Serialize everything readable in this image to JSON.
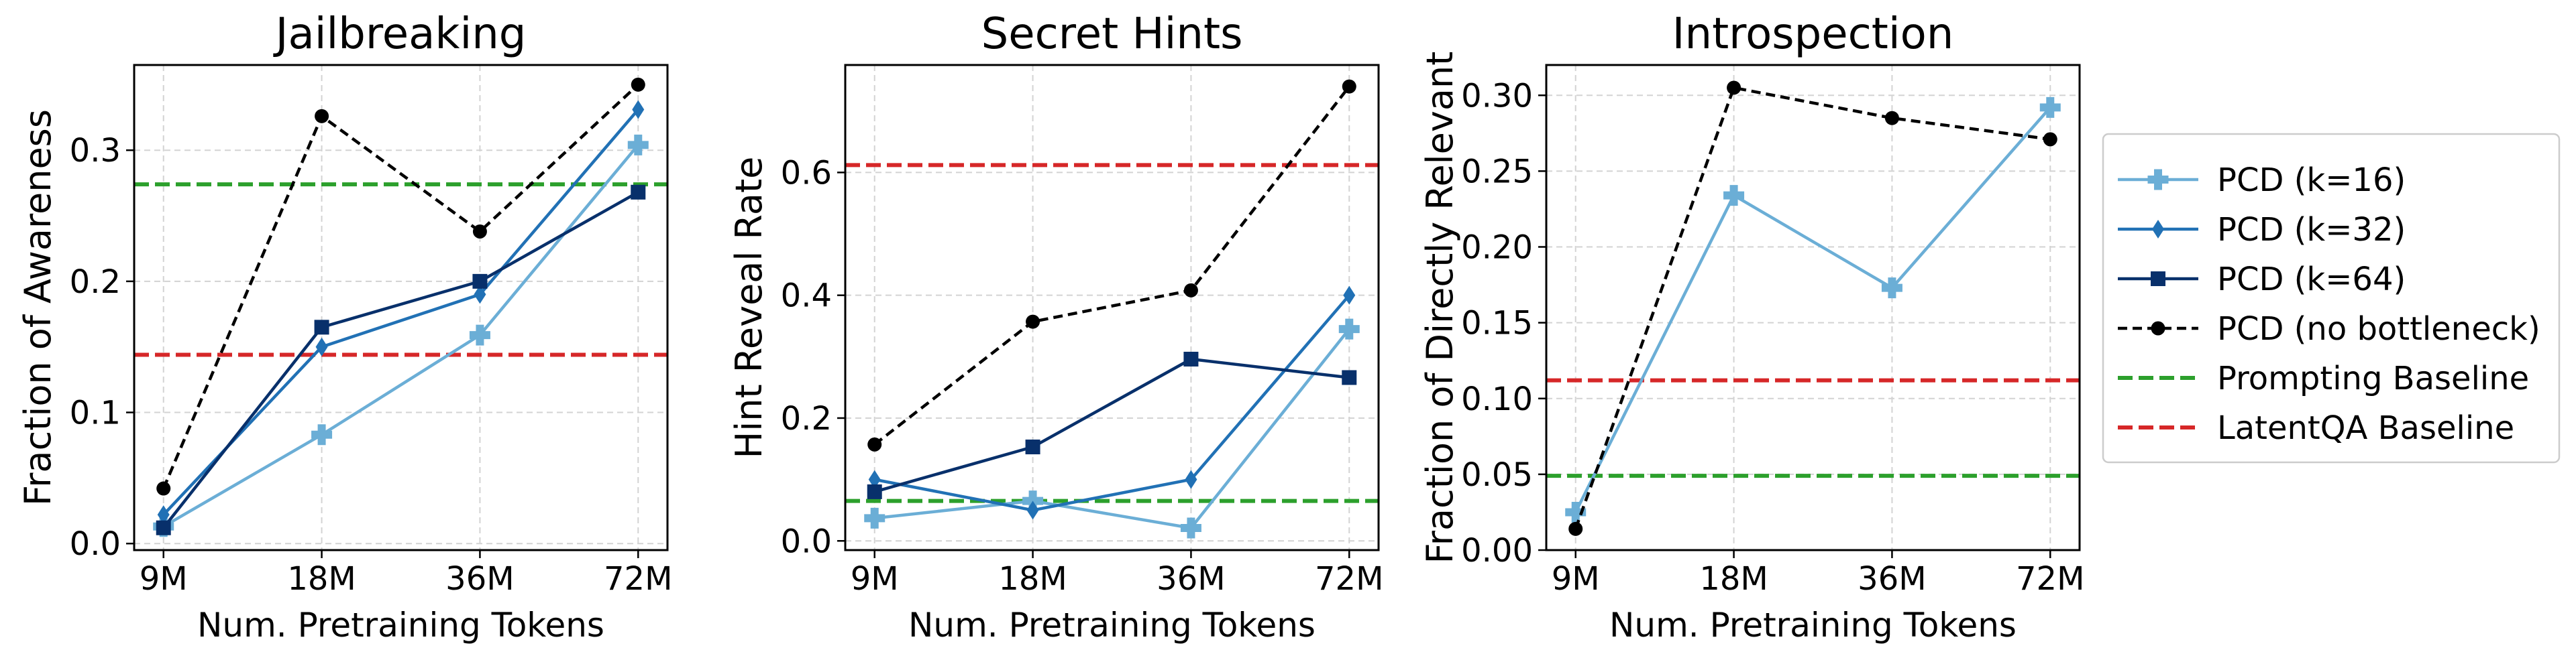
{
  "x_categories": [
    "9M",
    "18M",
    "36M",
    "72M"
  ],
  "legend": [
    {
      "key": "k16",
      "label": "PCD (k=16)"
    },
    {
      "key": "k32",
      "label": "PCD (k=32)"
    },
    {
      "key": "k64",
      "label": "PCD (k=64)"
    },
    {
      "key": "nobn",
      "label": "PCD (no bottleneck)"
    },
    {
      "key": "prompt",
      "label": "Prompting Baseline"
    },
    {
      "key": "latent",
      "label": "LatentQA Baseline"
    }
  ],
  "styles": {
    "k16": {
      "color": "#6baed6",
      "marker": "plus",
      "dashed": false
    },
    "k32": {
      "color": "#2171b5",
      "marker": "diamond",
      "dashed": false
    },
    "k64": {
      "color": "#08306b",
      "marker": "square",
      "dashed": false
    },
    "nobn": {
      "color": "#000000",
      "marker": "circle",
      "dashed": true
    },
    "prompt": {
      "color": "#2ca02c",
      "marker": "none",
      "dashed": true
    },
    "latent": {
      "color": "#d62728",
      "marker": "none",
      "dashed": true
    }
  },
  "chart_data": [
    {
      "type": "line",
      "title": "Jailbreaking",
      "xlabel": "Num. Pretraining Tokens",
      "ylabel": "Fraction of Awareness",
      "x": [
        "9M",
        "18M",
        "36M",
        "72M"
      ],
      "ylim": [
        -0.005,
        0.365
      ],
      "yticks": [
        0.0,
        0.1,
        0.2,
        0.3
      ],
      "ytick_labels": [
        "0.0",
        "0.1",
        "0.2",
        "0.3"
      ],
      "grid": true,
      "series": [
        {
          "name": "PCD (k=16)",
          "key": "k16",
          "values": [
            0.013,
            0.083,
            0.159,
            0.304
          ]
        },
        {
          "name": "PCD (k=32)",
          "key": "k32",
          "values": [
            0.022,
            0.15,
            0.19,
            0.331
          ]
        },
        {
          "name": "PCD (k=64)",
          "key": "k64",
          "values": [
            0.012,
            0.165,
            0.2,
            0.268
          ]
        },
        {
          "name": "PCD (no bottleneck)",
          "key": "nobn",
          "values": [
            0.042,
            0.326,
            0.238,
            0.35
          ]
        }
      ],
      "baselines": [
        {
          "name": "Prompting Baseline",
          "key": "prompt",
          "value": 0.274
        },
        {
          "name": "LatentQA Baseline",
          "key": "latent",
          "value": 0.144
        }
      ]
    },
    {
      "type": "line",
      "title": "Secret Hints",
      "xlabel": "Num. Pretraining Tokens",
      "ylabel": "Hint Reveal Rate",
      "x": [
        "9M",
        "18M",
        "36M",
        "72M"
      ],
      "ylim": [
        -0.015,
        0.775
      ],
      "yticks": [
        0.0,
        0.2,
        0.4,
        0.6
      ],
      "ytick_labels": [
        "0.0",
        "0.2",
        "0.4",
        "0.6"
      ],
      "grid": true,
      "series": [
        {
          "name": "PCD (k=16)",
          "key": "k16",
          "values": [
            0.037,
            0.065,
            0.021,
            0.345
          ]
        },
        {
          "name": "PCD (k=32)",
          "key": "k32",
          "values": [
            0.1,
            0.05,
            0.1,
            0.4
          ]
        },
        {
          "name": "PCD (k=64)",
          "key": "k64",
          "values": [
            0.08,
            0.153,
            0.296,
            0.266
          ]
        },
        {
          "name": "PCD (no bottleneck)",
          "key": "nobn",
          "values": [
            0.157,
            0.357,
            0.408,
            0.74
          ]
        }
      ],
      "baselines": [
        {
          "name": "Prompting Baseline",
          "key": "prompt",
          "value": 0.065
        },
        {
          "name": "LatentQA Baseline",
          "key": "latent",
          "value": 0.612
        }
      ]
    },
    {
      "type": "line",
      "title": "Introspection",
      "xlabel": "Num. Pretraining Tokens",
      "ylabel": "Fraction of Directly Relevant",
      "x": [
        "9M",
        "18M",
        "36M",
        "72M"
      ],
      "ylim": [
        0.0,
        0.32
      ],
      "yticks": [
        0.0,
        0.05,
        0.1,
        0.15,
        0.2,
        0.25,
        0.3
      ],
      "ytick_labels": [
        "0.00",
        "0.05",
        "0.10",
        "0.15",
        "0.20",
        "0.25",
        "0.30"
      ],
      "grid": true,
      "series": [
        {
          "name": "PCD (k=16)",
          "key": "k16",
          "values": [
            0.025,
            0.234,
            0.173,
            0.292
          ]
        },
        {
          "name": "PCD (no bottleneck)",
          "key": "nobn",
          "values": [
            0.014,
            0.305,
            0.285,
            0.271
          ]
        }
      ],
      "baselines": [
        {
          "name": "Prompting Baseline",
          "key": "prompt",
          "value": 0.049
        },
        {
          "name": "LatentQA Baseline",
          "key": "latent",
          "value": 0.112
        }
      ]
    }
  ]
}
